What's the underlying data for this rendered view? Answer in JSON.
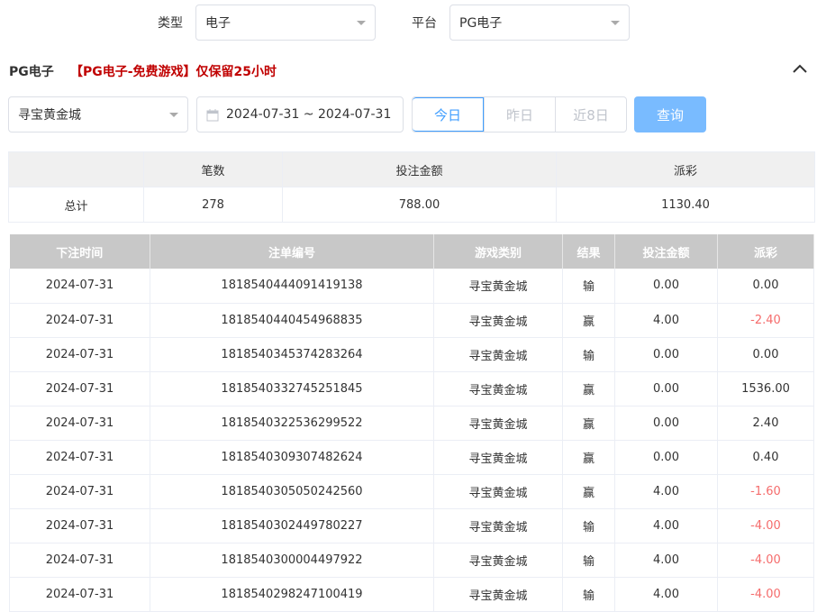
{
  "filters": {
    "type_label": "类型",
    "type_value": "电子",
    "platform_label": "平台",
    "platform_value": "PG电子"
  },
  "section": {
    "title": "PG电子",
    "notice": "【PG电子-免费游戏】仅保留25小时"
  },
  "query": {
    "game_value": "寻宝黄金城",
    "date_range": "2024-07-31 ~ 2024-07-31",
    "quick": [
      "今日",
      "昨日",
      "近8日"
    ],
    "active_quick": "今日",
    "search_label": "查询"
  },
  "summary": {
    "headers": [
      "",
      "笔数",
      "投注金额",
      "派彩"
    ],
    "row": [
      "总计",
      "278",
      "788.00",
      "1130.40"
    ]
  },
  "table": {
    "headers": [
      "下注时间",
      "注单编号",
      "游戏类别",
      "结果",
      "投注金额",
      "派彩"
    ],
    "rows": [
      [
        "2024-07-31",
        "1818540444091419138",
        "寻宝黄金城",
        "输",
        "0.00",
        "0.00"
      ],
      [
        "2024-07-31",
        "1818540440454968835",
        "寻宝黄金城",
        "赢",
        "4.00",
        "-2.40"
      ],
      [
        "2024-07-31",
        "1818540345374283264",
        "寻宝黄金城",
        "输",
        "0.00",
        "0.00"
      ],
      [
        "2024-07-31",
        "1818540332745251845",
        "寻宝黄金城",
        "赢",
        "0.00",
        "1536.00"
      ],
      [
        "2024-07-31",
        "1818540322536299522",
        "寻宝黄金城",
        "赢",
        "0.00",
        "2.40"
      ],
      [
        "2024-07-31",
        "1818540309307482624",
        "寻宝黄金城",
        "赢",
        "0.00",
        "0.40"
      ],
      [
        "2024-07-31",
        "1818540305050242560",
        "寻宝黄金城",
        "赢",
        "4.00",
        "-1.60"
      ],
      [
        "2024-07-31",
        "1818540302449780227",
        "寻宝黄金城",
        "输",
        "4.00",
        "-4.00"
      ],
      [
        "2024-07-31",
        "1818540300004497922",
        "寻宝黄金城",
        "输",
        "4.00",
        "-4.00"
      ],
      [
        "2024-07-31",
        "1818540298247100419",
        "寻宝黄金城",
        "输",
        "4.00",
        "-4.00"
      ]
    ]
  },
  "colors": {
    "accent": "#409eff",
    "notice": "#c00000",
    "negative": "#f56c6c"
  }
}
